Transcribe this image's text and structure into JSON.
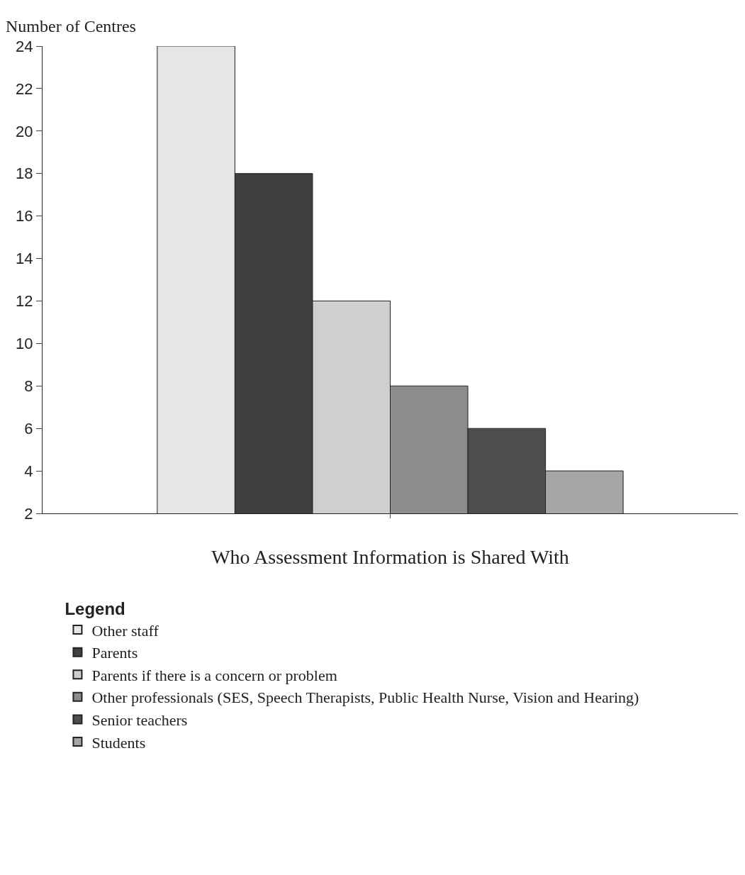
{
  "chart_data": {
    "type": "bar",
    "xlabel": "Who Assessment Information is Shared With",
    "ylabel": "Number of Centres",
    "legend_title": "Legend",
    "categories": [
      null
    ],
    "series": [
      {
        "name": "Other staff",
        "color": "#e6e6e6",
        "values": [
          24
        ]
      },
      {
        "name": "Parents",
        "color": "#3f3f3f",
        "values": [
          18
        ]
      },
      {
        "name": "Parents if there is a concern or problem",
        "color": "#cfcfcf",
        "values": [
          12
        ]
      },
      {
        "name": "Other professionals (SES, Speech Therapists, Public Health Nurse, Vision and Hearing)",
        "color": "#8c8c8c",
        "values": [
          8
        ]
      },
      {
        "name": "Senior teachers",
        "color": "#4d4d4d",
        "values": [
          6
        ]
      },
      {
        "name": "Students",
        "color": "#a6a6a6",
        "values": [
          4
        ]
      }
    ],
    "ylim": [
      2,
      24
    ],
    "yticks": [
      2,
      4,
      6,
      8,
      10,
      12,
      14,
      16,
      18,
      20,
      22,
      24
    ],
    "legend": "bottom"
  }
}
